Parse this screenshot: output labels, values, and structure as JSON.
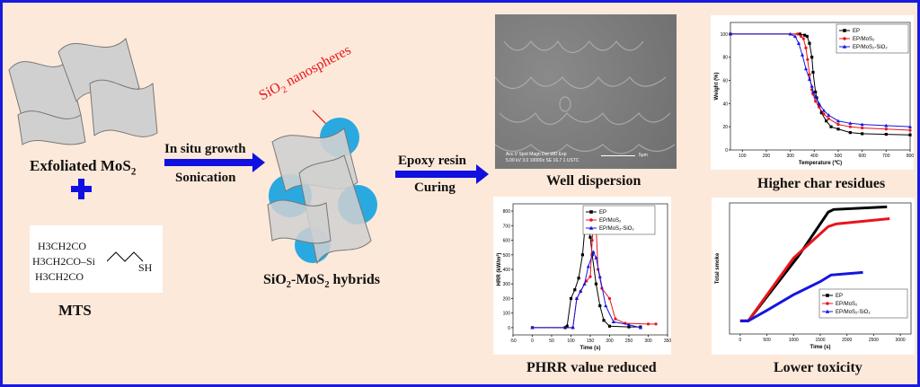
{
  "labels": {
    "exfoliated": "Exfoliated MoS",
    "exfoliated_sub": "2",
    "mts": "MTS",
    "step1_top": "In situ growth",
    "step1_bottom": "Sonication",
    "sio2_prefix": "SiO",
    "sio2_sub": "2",
    "sio2_suffix": " nanospheres",
    "hybrids_a": "SiO",
    "hybrids_sub1": "2",
    "hybrids_b": "-MoS",
    "hybrids_sub2": "2",
    "hybrids_c": " hybrids",
    "step2_top": "Epoxy resin",
    "step2_bottom": "Curing",
    "well": "Well dispersion",
    "char": "Higher char residues",
    "phrr": "PHRR value reduced",
    "tox": "Lower toxicity",
    "sem_info1": "Acc.V  Spot Magn   Det  WD  Exp",
    "sem_info2": "5.00 kV 3.0  10000x  SE  16.7  1      USTC",
    "sem_scale": "5μm"
  },
  "mts_formula": {
    "l1": "H3CH2CO",
    "l2": "H3CH2CO–Si",
    "l3": "H3CH2CO",
    "sh": "SH"
  },
  "colors": {
    "border": "#1a1adc",
    "background": "#fde9d9",
    "arrow": "#1010e0",
    "sheet": "#d0d0d0",
    "sphere": "#29a9e0",
    "EP": "#000000",
    "MoS2": "#e8141c",
    "SiO2": "#1515e0"
  },
  "chart_data": [
    {
      "type": "line",
      "id": "tga",
      "xlabel": "Temperature (℃)",
      "ylabel": "Weight (%)",
      "xlim": [
        50,
        800
      ],
      "ylim": [
        0,
        110
      ],
      "xticks": [
        100,
        200,
        300,
        400,
        500,
        600,
        700,
        800
      ],
      "yticks": [
        0,
        20,
        40,
        60,
        80,
        100
      ],
      "legend": "top-right",
      "series": [
        {
          "name": "EP",
          "marker": "square",
          "x": [
            50,
            340,
            360,
            370,
            380,
            390,
            395,
            405,
            410,
            420,
            430,
            450,
            470,
            500,
            550,
            600,
            700,
            800
          ],
          "y": [
            100,
            100,
            99,
            98,
            92,
            80,
            67,
            50,
            45,
            38,
            32,
            25,
            20,
            18,
            15,
            14,
            13.5,
            13
          ]
        },
        {
          "name": "EP/MoS2",
          "marker": "circle",
          "x": [
            50,
            330,
            345,
            355,
            365,
            372,
            380,
            390,
            395,
            405,
            420,
            440,
            460,
            500,
            550,
            600,
            700,
            800
          ],
          "y": [
            100,
            100,
            98,
            96,
            88,
            78,
            65,
            52,
            48,
            42,
            37,
            31,
            27,
            22,
            20,
            19,
            18,
            17
          ]
        },
        {
          "name": "EP/MoS2-SiO2",
          "marker": "triangle",
          "x": [
            50,
            300,
            320,
            335,
            350,
            365,
            380,
            390,
            395,
            405,
            420,
            440,
            460,
            500,
            550,
            600,
            700,
            800
          ],
          "y": [
            100,
            100,
            98,
            92,
            82,
            70,
            61,
            55,
            50,
            46,
            40,
            34,
            30,
            25,
            23,
            22,
            21,
            20
          ]
        }
      ]
    },
    {
      "type": "line",
      "id": "hrr",
      "xlabel": "Time (s)",
      "ylabel": "HRR (kW/m²)",
      "xlim": [
        -50,
        350
      ],
      "ylim": [
        -50,
        850
      ],
      "xticks": [
        -50,
        0,
        50,
        100,
        150,
        200,
        250,
        300,
        350
      ],
      "yticks": [
        0,
        100,
        200,
        300,
        400,
        500,
        600,
        700,
        800
      ],
      "legend": "top-right",
      "series": [
        {
          "name": "EP",
          "marker": "square",
          "x": [
            0,
            85,
            90,
            100,
            110,
            120,
            130,
            138,
            145,
            150,
            155,
            165,
            175,
            185,
            200,
            250,
            280
          ],
          "y": [
            0,
            0,
            10,
            200,
            260,
            340,
            500,
            745,
            720,
            620,
            500,
            300,
            150,
            50,
            10,
            5,
            5
          ]
        },
        {
          "name": "EP/MoS2",
          "marker": "circle",
          "x": [
            0,
            105,
            115,
            125,
            140,
            150,
            155,
            160,
            165,
            170,
            180,
            200,
            215,
            240,
            300,
            320
          ],
          "y": [
            0,
            0,
            200,
            250,
            320,
            350,
            600,
            765,
            700,
            400,
            270,
            200,
            60,
            30,
            25,
            25
          ]
        },
        {
          "name": "EP/MoS2-SiO2",
          "marker": "triangle",
          "x": [
            0,
            105,
            115,
            125,
            135,
            145,
            158,
            165,
            175,
            190,
            210,
            250,
            280
          ],
          "y": [
            0,
            0,
            200,
            250,
            300,
            420,
            520,
            480,
            350,
            150,
            40,
            20,
            0
          ]
        }
      ]
    },
    {
      "type": "line",
      "id": "smoke",
      "xlabel": "Time (s)",
      "ylabel": "Total smoke",
      "xlim": [
        -200,
        3200
      ],
      "ylim": [
        0,
        100
      ],
      "xticks": [
        0,
        500,
        1000,
        1500,
        2000,
        2500,
        3000
      ],
      "yticks": [],
      "legend": "bottom-right",
      "series": [
        {
          "name": "EP",
          "marker": "square",
          "x": [
            0,
            150,
            1100,
            1650,
            1750,
            2750
          ],
          "y": [
            10,
            10,
            60,
            93,
            95,
            97
          ]
        },
        {
          "name": "EP/MoS2",
          "marker": "circle",
          "x": [
            0,
            150,
            1000,
            1650,
            1800,
            2800
          ],
          "y": [
            10,
            10,
            58,
            82,
            84,
            88
          ]
        },
        {
          "name": "EP/MoS2-SiO2",
          "marker": "triangle",
          "x": [
            0,
            150,
            500,
            1000,
            1500,
            1700,
            2300
          ],
          "y": [
            10,
            10,
            18,
            30,
            40,
            45,
            47
          ]
        }
      ]
    }
  ]
}
